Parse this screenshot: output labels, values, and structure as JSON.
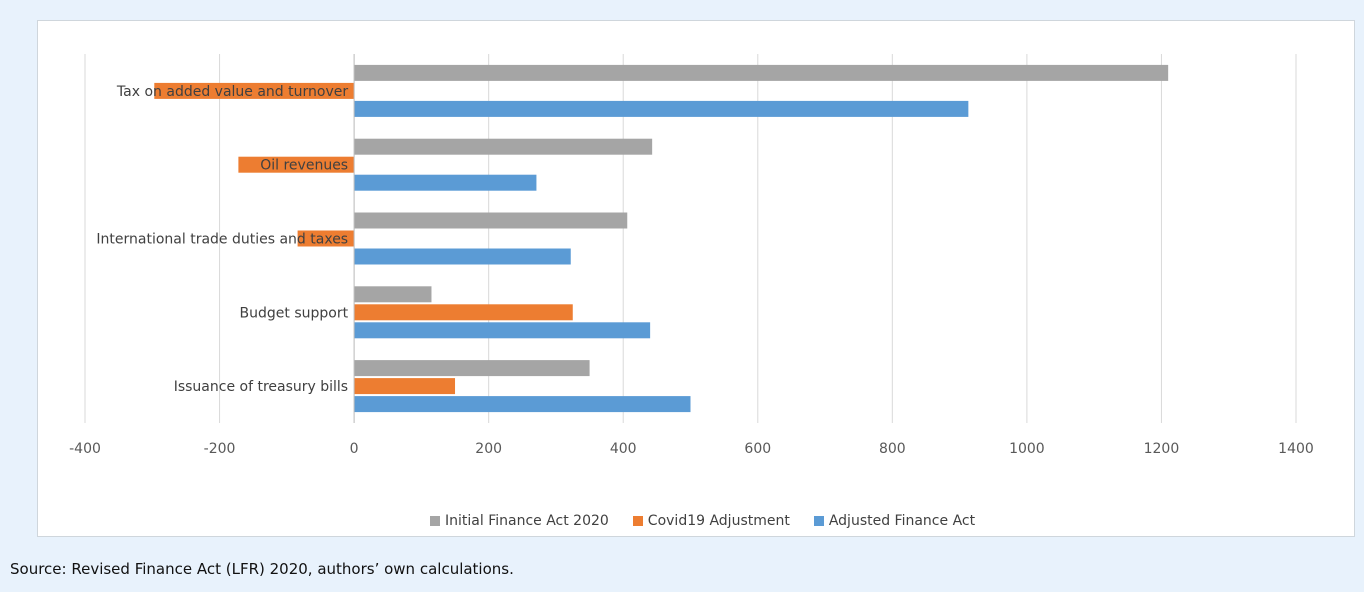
{
  "chart_data": {
    "type": "bar",
    "orientation": "horizontal",
    "title": "",
    "categories": [
      "Tax on added value and turnover",
      "Oil revenues",
      "International trade duties and taxes",
      "Budget support",
      "Issuance of treasury bills"
    ],
    "series": [
      {
        "name": "Initial Finance Act 2020",
        "color": "#a5a5a5",
        "values": [
          1210,
          443,
          406,
          115,
          350
        ]
      },
      {
        "name": "Covid19 Adjustment",
        "color": "#ed7d31",
        "values": [
          -297,
          -172,
          -84,
          325,
          150
        ]
      },
      {
        "name": "Adjusted Finance Act",
        "color": "#5b9bd5",
        "values": [
          913,
          271,
          322,
          440,
          500
        ]
      }
    ],
    "xlim": [
      -400,
      1400
    ],
    "xticks": [
      -400,
      -200,
      0,
      200,
      400,
      600,
      800,
      1000,
      1200,
      1400
    ],
    "grid": true,
    "legend_position": "bottom"
  },
  "source_note": "Source: Revised Finance Act (LFR) 2020, authors’ own calculations."
}
